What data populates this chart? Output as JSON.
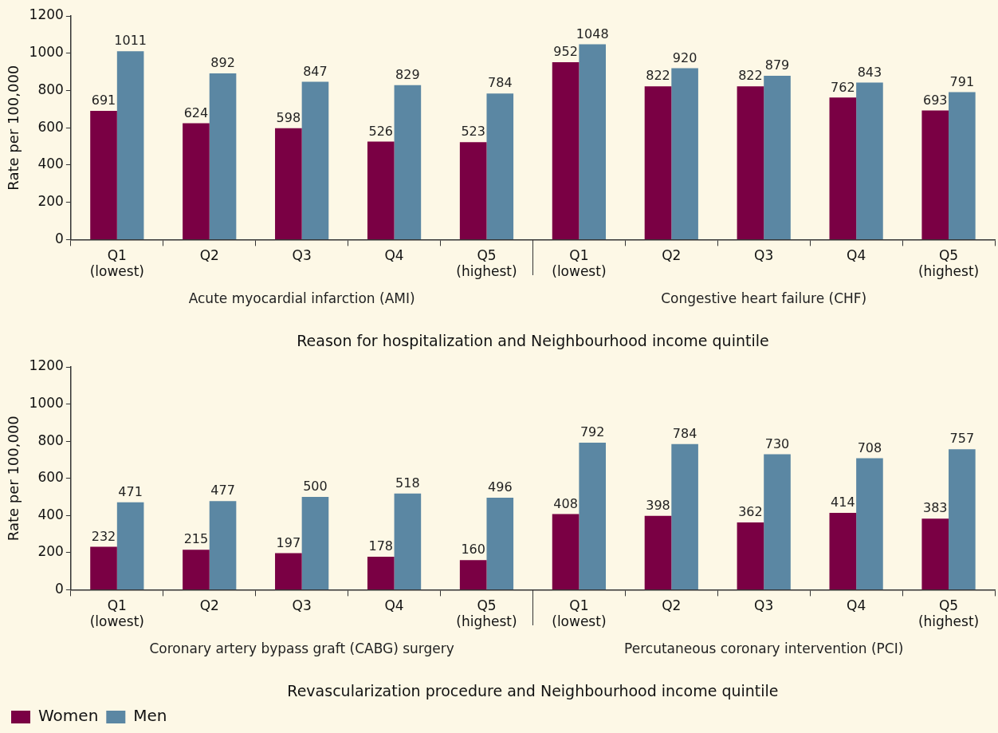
{
  "chart_data": [
    {
      "type": "bar",
      "xlabel": "Reason for hospitalization and Neighbourhood income quintile",
      "ylabel": "Rate per 100,000",
      "categories": [
        "Q1 (lowest)",
        "Q2",
        "Q3",
        "Q4",
        "Q5 (highest)",
        "Q1 (lowest)",
        "Q2",
        "Q3",
        "Q4",
        "Q5 (highest)"
      ],
      "series": [
        {
          "color": "#7a0044",
          "values": [
            691,
            624,
            598,
            526,
            523,
            952,
            822,
            822,
            762,
            693
          ]
        },
        {
          "color": "#5b87a3",
          "values": [
            1011,
            892,
            847,
            829,
            784,
            1048,
            920,
            879,
            843,
            791
          ]
        }
      ],
      "annotations": [
        "Acute myocardial infarction (AMI)",
        "Congestive heart failure (CHF)"
      ],
      "ylim": [
        0,
        1200
      ],
      "yticks": [
        0,
        200,
        400,
        600,
        800,
        1000,
        1200
      ],
      "grid": false,
      "legend": false,
      "data_labels": true
    },
    {
      "type": "bar",
      "xlabel": "Revascularization procedure and Neighbourhood income quintile",
      "ylabel": "Rate per 100,000",
      "categories": [
        "Q1 (lowest)",
        "Q2",
        "Q3",
        "Q4",
        "Q5 (highest)",
        "Q1 (lowest)",
        "Q2",
        "Q3",
        "Q4",
        "Q5 (highest)"
      ],
      "series": [
        {
          "name": "Women",
          "color": "#7a0044",
          "values": [
            232,
            215,
            197,
            178,
            160,
            408,
            398,
            362,
            414,
            383
          ]
        },
        {
          "name": "Men",
          "color": "#5b87a3",
          "values": [
            471,
            477,
            500,
            518,
            496,
            792,
            784,
            730,
            708,
            757
          ]
        }
      ],
      "annotations": [
        "Coronary artery bypass graft (CABG) surgery",
        "Percutaneous coronary intervention (PCI)"
      ],
      "ylim": [
        0,
        1200
      ],
      "yticks": [
        0,
        200,
        400,
        600,
        800,
        1000,
        1200
      ],
      "grid": false,
      "legend": "bottom left",
      "data_labels": true
    }
  ]
}
